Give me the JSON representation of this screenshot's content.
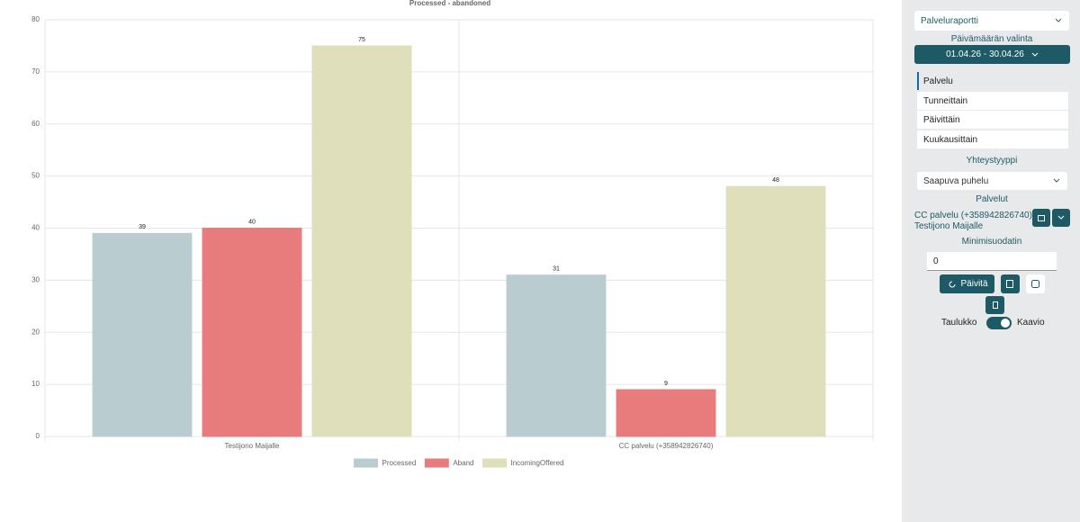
{
  "chart_data": {
    "type": "bar",
    "title": "Processed - abandoned",
    "categories": [
      "Testijono Maijalle",
      "CC palvelu (+358942826740)"
    ],
    "series": [
      {
        "name": "Processed",
        "color": "#b9cdd1",
        "values": [
          39,
          31
        ]
      },
      {
        "name": "Aband",
        "color": "#e87b7b",
        "values": [
          40,
          9
        ]
      },
      {
        "name": "IncomingOffered",
        "color": "#dfdfbc",
        "values": [
          75,
          48
        ]
      }
    ],
    "ylim": [
      0,
      80
    ],
    "yticks": [
      0,
      10,
      20,
      30,
      40,
      50,
      60,
      70,
      80
    ],
    "grid": true,
    "legend": "bottom"
  },
  "sidebar": {
    "report_select": "Palveluraportti",
    "date_label": "Päivämäärän valinta",
    "date_range": "01.04.26 - 30.04.26",
    "grouping": [
      "Palvelu",
      "Tunneittain",
      "Päivittäin",
      "Kuukausittain"
    ],
    "contact_type_label": "Yhteystyyppi",
    "contact_type": "Saapuva puhelu",
    "services_label": "Palvelut",
    "services": [
      "CC palvelu (+358942826740)",
      "Testijono Maijalle"
    ],
    "min_filter_label": "Minimisuodatin",
    "min_filter": 0,
    "refresh": "Päivitä",
    "toggle_left": "Taulukko",
    "toggle_right": "Kaavio"
  }
}
